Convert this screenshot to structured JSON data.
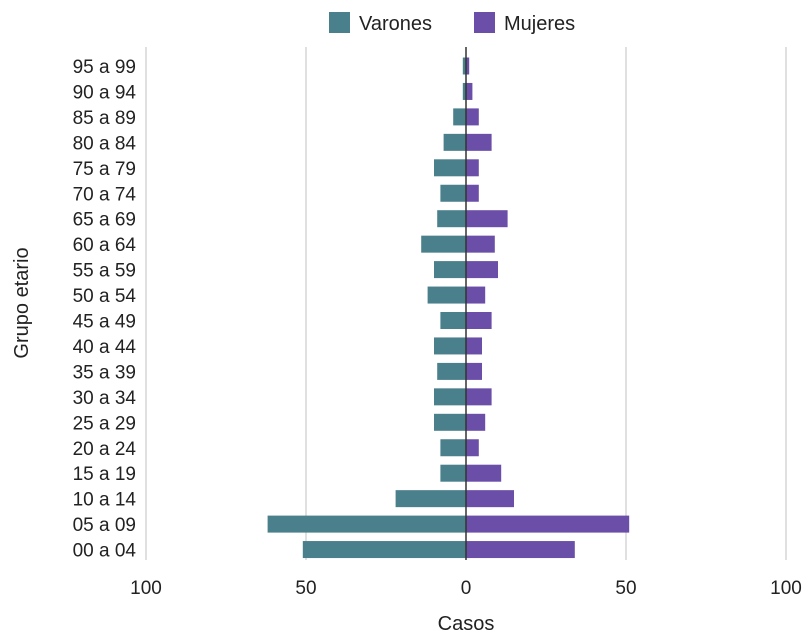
{
  "chart_data": {
    "type": "bar",
    "orientation": "horizontal",
    "layout": "population-pyramid",
    "xlabel": "Casos",
    "ylabel": "Grupo etario",
    "xlim": [
      -100,
      100
    ],
    "xticks": [
      -100,
      -50,
      0,
      50,
      100
    ],
    "xtick_labels": [
      "100",
      "50",
      "0",
      "50",
      "100"
    ],
    "grid": "vertical",
    "legend_position": "top-center",
    "categories": [
      "95 a 99",
      "90 a 94",
      "85 a 89",
      "80 a 84",
      "75 a 79",
      "70 a 74",
      "65 a 69",
      "60 a 64",
      "55 a 59",
      "50 a 54",
      "45 a 49",
      "40 a 44",
      "35 a 39",
      "30 a 34",
      "25 a 29",
      "20 a 24",
      "15 a 19",
      "10 a 14",
      "05 a 09",
      "00 a 04"
    ],
    "series": [
      {
        "name": "Varones",
        "color": "#4a7f8c",
        "side": "left",
        "values": [
          1,
          1,
          4,
          7,
          10,
          8,
          9,
          14,
          10,
          12,
          8,
          10,
          9,
          10,
          10,
          8,
          8,
          22,
          62,
          51
        ]
      },
      {
        "name": "Mujeres",
        "color": "#6a4ea8",
        "side": "right",
        "values": [
          1,
          2,
          4,
          8,
          4,
          4,
          13,
          9,
          10,
          6,
          8,
          5,
          5,
          8,
          6,
          4,
          11,
          15,
          51,
          34
        ]
      }
    ]
  }
}
